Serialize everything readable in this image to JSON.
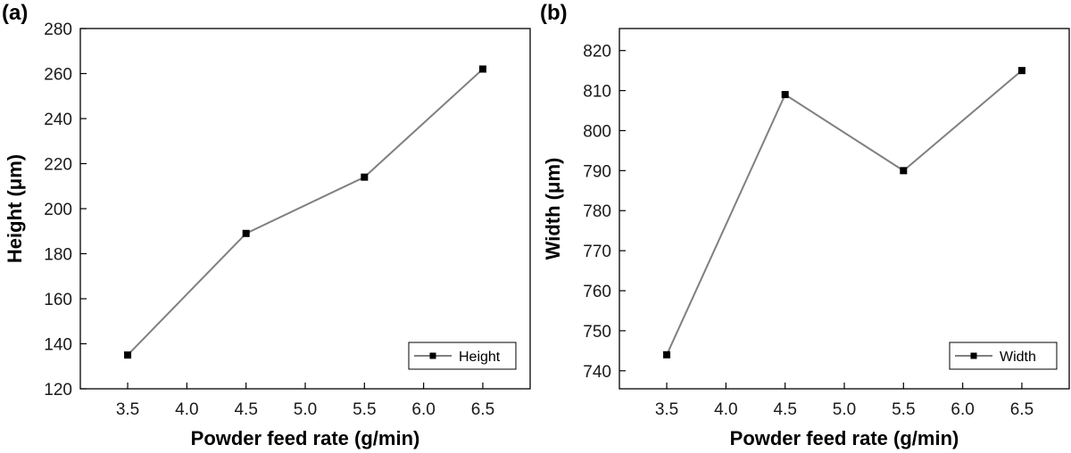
{
  "chart_data": [
    {
      "type": "line",
      "panel_label": "(a)",
      "x": [
        3.5,
        4.5,
        5.5,
        6.5
      ],
      "series": [
        {
          "name": "Height",
          "values": [
            135,
            189,
            214,
            262
          ]
        }
      ],
      "xticks": [
        "3.5",
        "4.0",
        "4.5",
        "5.0",
        "5.5",
        "6.0",
        "6.5"
      ],
      "xtick_values": [
        3.5,
        4.0,
        4.5,
        5.0,
        5.5,
        6.0,
        6.5
      ],
      "yticks": [
        "120",
        "140",
        "160",
        "180",
        "200",
        "220",
        "240",
        "260",
        "280"
      ],
      "ytick_values": [
        120,
        140,
        160,
        180,
        200,
        220,
        240,
        260,
        280
      ],
      "xlim": [
        3.1,
        6.9
      ],
      "ylim": [
        120,
        280
      ],
      "xlabel": "Powder feed rate (g/min)",
      "ylabel": "Height (μm)",
      "legend": {
        "label": "Height",
        "position": "bottom-right"
      },
      "line_color": "#808080",
      "marker_color": "#000000"
    },
    {
      "type": "line",
      "panel_label": "(b)",
      "x": [
        3.5,
        4.5,
        5.5,
        6.5
      ],
      "series": [
        {
          "name": "Width",
          "values": [
            744,
            809,
            790,
            815
          ]
        }
      ],
      "xticks": [
        "3.5",
        "4.0",
        "4.5",
        "5.0",
        "5.5",
        "6.0",
        "6.5"
      ],
      "xtick_values": [
        3.5,
        4.0,
        4.5,
        5.0,
        5.5,
        6.0,
        6.5
      ],
      "yticks": [
        "740",
        "750",
        "760",
        "770",
        "780",
        "790",
        "800",
        "810",
        "820"
      ],
      "ytick_values": [
        740,
        750,
        760,
        770,
        780,
        790,
        800,
        810,
        820
      ],
      "xlim": [
        3.1,
        6.9
      ],
      "ylim": [
        735.5,
        825.5
      ],
      "xlabel": "Powder feed rate (g/min)",
      "ylabel": "Width (μm)",
      "legend": {
        "label": "Width",
        "position": "bottom-right"
      },
      "line_color": "#808080",
      "marker_color": "#000000"
    }
  ]
}
